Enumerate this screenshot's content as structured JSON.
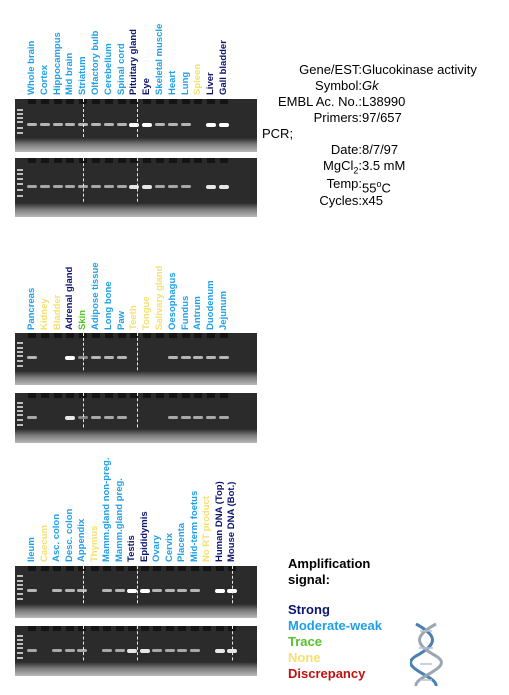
{
  "colors": {
    "strong": "#0d1470",
    "moderate": "#1fa0e6",
    "trace": "#55c22a",
    "none": "#f5e070",
    "discrepancy": "#c01010"
  },
  "info": {
    "rows": [
      {
        "key": "Gene/EST:",
        "value": "Glucokinase activity"
      },
      {
        "key": "Symbol:",
        "value": "Gk"
      },
      {
        "key": "EMBL Ac. No.:",
        "value": "L38990"
      },
      {
        "key": "Primers:",
        "value": "97/657"
      },
      {
        "key": "PCR;",
        "value": ""
      },
      {
        "key": "Date:",
        "value": "8/7/97"
      },
      {
        "key": "MgCl",
        "sub": "2",
        "keytail": ":",
        "value": "3.5 mM"
      },
      {
        "key": "Temp:",
        "value": "55",
        "sup": "o",
        "valuetail": "C"
      },
      {
        "key": "Cycles:",
        "value": "x45"
      }
    ]
  },
  "legend": {
    "title_line1": "Amplification",
    "title_line2": "signal:",
    "items": [
      {
        "label": "Strong",
        "level": "strong"
      },
      {
        "label": "Moderate-weak",
        "level": "moderate"
      },
      {
        "label": "Trace",
        "level": "trace"
      },
      {
        "label": "None",
        "level": "none"
      },
      {
        "label": "Discrepancy",
        "level": "discrepancy"
      }
    ]
  },
  "panels": [
    {
      "lanes": [
        {
          "label": "Whole brain",
          "level": "moderate"
        },
        {
          "label": "Cortex",
          "level": "moderate"
        },
        {
          "label": "Hippocampus",
          "level": "moderate"
        },
        {
          "label": "Mid brain",
          "level": "moderate"
        },
        {
          "label": "Striatum",
          "level": "moderate"
        },
        {
          "label": "Olfactory bulb",
          "level": "moderate"
        },
        {
          "label": "Cerebellum",
          "level": "moderate"
        },
        {
          "label": "Spinal cord",
          "level": "moderate"
        },
        {
          "label": "Pituitary gland",
          "level": "strong"
        },
        {
          "label": "Eye",
          "level": "strong"
        },
        {
          "label": "Skeletal muscle",
          "level": "moderate"
        },
        {
          "label": "Heart",
          "level": "moderate"
        },
        {
          "label": "Lung",
          "level": "moderate"
        },
        {
          "label": "Spleen",
          "level": "none"
        },
        {
          "label": "Liver",
          "level": "strong"
        },
        {
          "label": "Gall bladder",
          "level": "strong"
        }
      ]
    },
    {
      "lanes": [
        {
          "label": "Pancreas",
          "level": "moderate"
        },
        {
          "label": "Kidney",
          "level": "none"
        },
        {
          "label": "Bladder",
          "level": "none"
        },
        {
          "label": "Adrenal gland",
          "level": "strong"
        },
        {
          "label": "Skin",
          "level": "trace"
        },
        {
          "label": "Adipose tissue",
          "level": "moderate"
        },
        {
          "label": "Long bone",
          "level": "moderate"
        },
        {
          "label": "Paw",
          "level": "moderate"
        },
        {
          "label": "Teeth",
          "level": "none"
        },
        {
          "label": "Tongue",
          "level": "none"
        },
        {
          "label": "Salivary gland",
          "level": "none"
        },
        {
          "label": "Oesophagus",
          "level": "moderate"
        },
        {
          "label": "Fundus",
          "level": "moderate"
        },
        {
          "label": "Antrum",
          "level": "moderate"
        },
        {
          "label": "Duodenum",
          "level": "moderate"
        },
        {
          "label": "Jejunum",
          "level": "moderate"
        }
      ]
    },
    {
      "lanes": [
        {
          "label": "Ileum",
          "level": "moderate"
        },
        {
          "label": "Caecum",
          "level": "none"
        },
        {
          "label": "Asc. colon",
          "level": "moderate"
        },
        {
          "label": "Desc. colon",
          "level": "moderate"
        },
        {
          "label": "Appendix",
          "level": "moderate"
        },
        {
          "label": "Thymus",
          "level": "none"
        },
        {
          "label": "Mamm.gland non-preg.",
          "level": "moderate"
        },
        {
          "label": "Mamm.gland preg.",
          "level": "moderate"
        },
        {
          "label": "Testis",
          "level": "strong"
        },
        {
          "label": "Epididymis",
          "level": "strong"
        },
        {
          "label": "Ovary",
          "level": "moderate"
        },
        {
          "label": "Cervix",
          "level": "moderate"
        },
        {
          "label": "Placenta",
          "level": "moderate"
        },
        {
          "label": "Mid-term foetus",
          "level": "moderate"
        },
        {
          "label": "No RT product",
          "level": "none"
        },
        {
          "label": "Human DNA (Top)",
          "level": "strong"
        },
        {
          "label": "Mouse DNA (Bot.)",
          "level": "strong"
        }
      ]
    }
  ]
}
